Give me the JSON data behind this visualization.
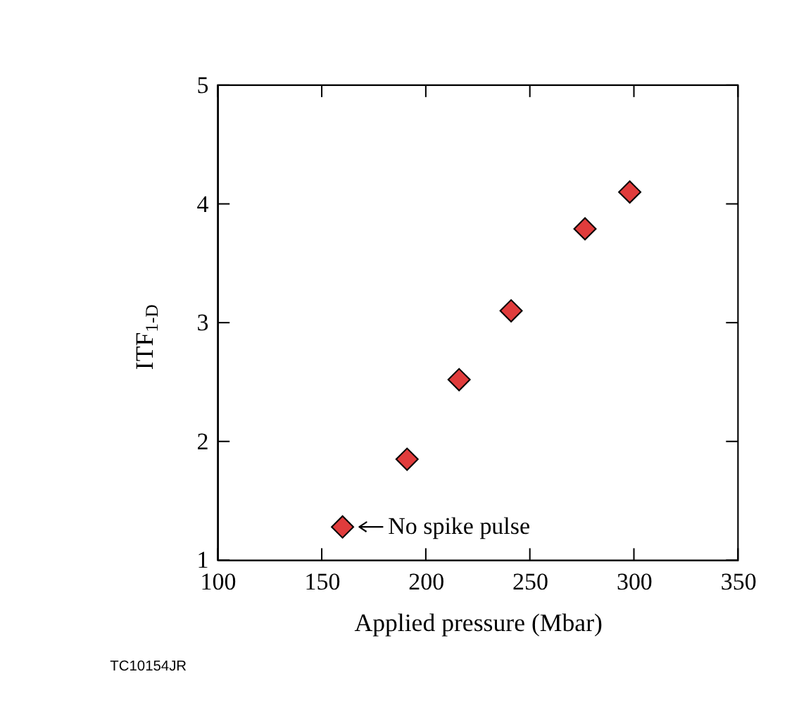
{
  "chart_data": {
    "type": "scatter",
    "xlabel": "Applied pressure (Mbar)",
    "ylabel": "ITF$_{1-D}$",
    "x": [
      160,
      191,
      216,
      241,
      276.5,
      298
    ],
    "series": [
      {
        "color": "#e03c3c",
        "values": [
          1.28,
          1.85,
          2.52,
          3.1,
          3.79,
          4.1
        ]
      }
    ],
    "xlim": [
      100,
      350
    ],
    "xticks": [
      100,
      150,
      200,
      250,
      300,
      350
    ],
    "ylim": [
      1,
      5
    ],
    "yticks": [
      1,
      2,
      3,
      4,
      5
    ],
    "marker": "diamond",
    "grid": false,
    "legend": false,
    "annotations": [
      {
        "text": "No spike pulse",
        "x": 160,
        "y": 1.28
      },
      "TC10154JR"
    ]
  }
}
